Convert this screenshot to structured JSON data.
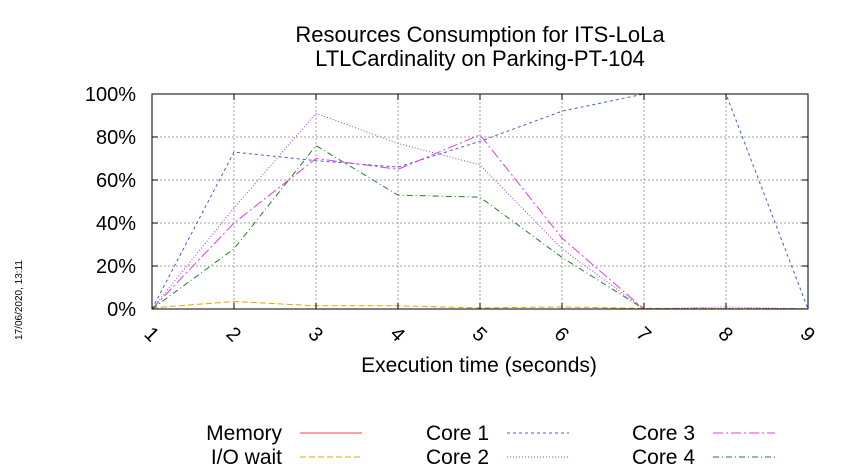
{
  "timestamp": "17/06/2020, 13:11",
  "chart_data": {
    "type": "line",
    "title": [
      "Resources Consumption for ITS-LoLa",
      "LTLCardinality on Parking-PT-104"
    ],
    "xlabel": "Execution time (seconds)",
    "ylabel": "",
    "x": [
      1,
      2,
      3,
      4,
      5,
      6,
      7,
      8,
      9
    ],
    "xlim": [
      1,
      9
    ],
    "ylim": [
      0,
      100
    ],
    "x_ticks": [
      "1",
      "2",
      "3",
      "4",
      "5",
      "6",
      "7",
      "8",
      "9"
    ],
    "y_ticks": [
      "0%",
      "20%",
      "40%",
      "60%",
      "80%",
      "100%"
    ],
    "grid": true,
    "legend_position": "bottom",
    "series": [
      {
        "name": "Memory",
        "color": "#ff4040",
        "dash": "",
        "values": [
          0,
          0,
          0,
          0,
          0,
          0,
          0,
          0,
          0
        ]
      },
      {
        "name": "I/O wait",
        "color": "#f0a000",
        "dash": "6,3",
        "values": [
          0.5,
          3.5,
          1.5,
          1.5,
          0.5,
          1,
          0.3,
          0.2,
          0.2
        ]
      },
      {
        "name": "Core 1",
        "color": "#4060d0",
        "dash": "3,3",
        "values": [
          0,
          73,
          69,
          66,
          78,
          92,
          100,
          100,
          0
        ]
      },
      {
        "name": "Core 2",
        "color": "#a040e0",
        "dash": "1,2",
        "values": [
          0,
          47,
          91,
          77,
          67,
          28,
          0,
          1,
          0
        ]
      },
      {
        "name": "Core 3",
        "color": "#e040e0",
        "dash": "10,3,2,3",
        "values": [
          0,
          40,
          70,
          65,
          81,
          33,
          0,
          0,
          0
        ]
      },
      {
        "name": "Core 4",
        "color": "#208020",
        "dash": "6,3,1,3",
        "values": [
          0,
          28,
          76,
          53,
          52,
          24,
          0,
          0,
          0
        ]
      }
    ]
  }
}
